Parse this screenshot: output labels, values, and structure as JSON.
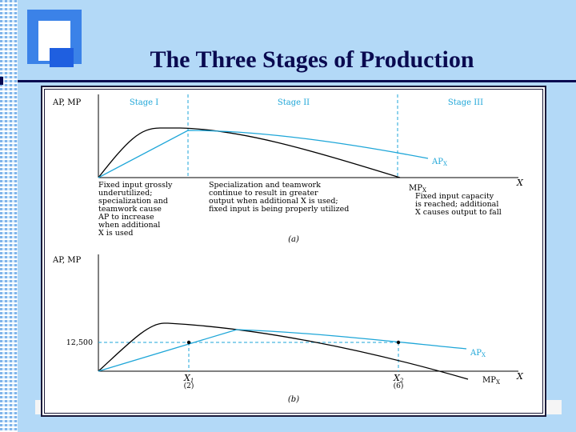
{
  "slide": {
    "title": "The Three Stages of Production"
  },
  "panel_a": {
    "y_axis_label": "AP, MP",
    "x_axis_label": "X",
    "stages": [
      "Stage I",
      "Stage II",
      "Stage III"
    ],
    "curve_labels": {
      "ap": "AP",
      "ap_sub": "X",
      "mp": "MP",
      "mp_sub": "X"
    },
    "notes": {
      "stage1": [
        "Fixed input grossly",
        "underutilized;",
        "specialization and",
        "teamwork cause",
        "AP to increase",
        "when additional",
        "X is used"
      ],
      "stage2": [
        "Specialization and teamwork",
        "continue to result in greater",
        "output when additional X is used;",
        "fixed input is being properly utilized"
      ],
      "stage3": [
        "Fixed input capacity",
        "is reached; additional",
        "X causes output to fall"
      ]
    },
    "caption": "(a)"
  },
  "panel_b": {
    "y_axis_label": "AP, MP",
    "x_axis_label": "X",
    "y_tick": "12,500",
    "x_ticks": [
      {
        "label": "X",
        "sub": "1",
        "paren": "(2)"
      },
      {
        "label": "X",
        "sub": "2",
        "paren": "(6)"
      }
    ],
    "curve_labels": {
      "ap": "AP",
      "ap_sub": "X",
      "mp": "MP",
      "mp_sub": "X"
    },
    "caption": "(b)"
  },
  "colors": {
    "ap_curve": "#1ea6d8",
    "mp_curve": "#000000",
    "title": "#0a0a50",
    "background": "#b3d9f7"
  }
}
